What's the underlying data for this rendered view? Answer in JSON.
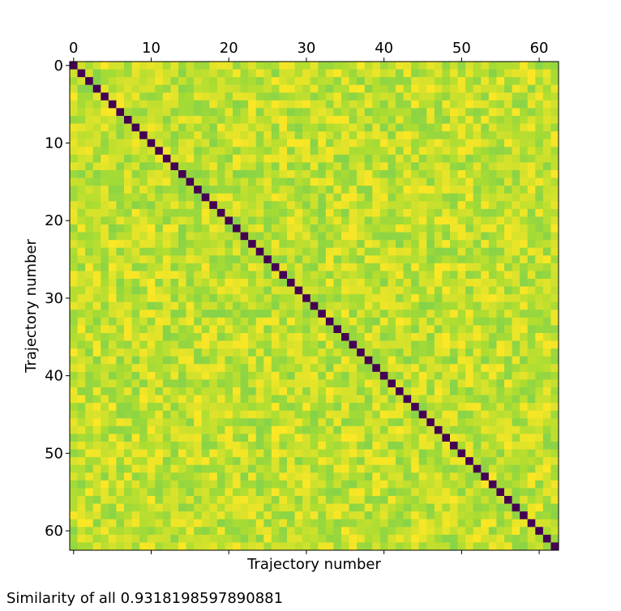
{
  "chart_data": {
    "type": "heatmap",
    "n": 63,
    "diagonal_value": 0,
    "offdiag_range": [
      0.91,
      0.96
    ],
    "colormap": "viridis",
    "xlabel": "Trajectory number",
    "ylabel": "Trajectory number",
    "x_ticks": [
      0,
      10,
      20,
      30,
      40,
      50,
      60
    ],
    "y_ticks": [
      0,
      10,
      20,
      30,
      40,
      50,
      60
    ],
    "x_axis_position": "top"
  },
  "caption": "Similarity of all 0.9318198597890881"
}
